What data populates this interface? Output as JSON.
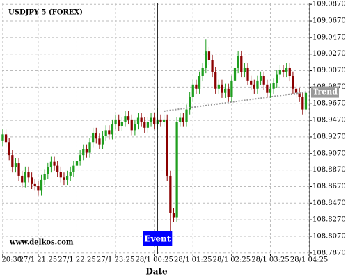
{
  "chart_data": {
    "type": "candlestick",
    "title": "USDJPY 5 (FOREX)",
    "x_label": "Date",
    "watermark": "www.delkos.com",
    "up_color": "#1f9e1f",
    "down_color": "#8b0000",
    "grid": true,
    "xlim": [
      -0.2,
      95.2
    ],
    "ylim": [
      108.786,
      109.088
    ],
    "xticks": [
      {
        "value": 0,
        "label": "27/1 20:30"
      },
      {
        "value": 11,
        "label": "27/1 21:25"
      },
      {
        "value": 23,
        "label": "27/1 22:25"
      },
      {
        "value": 35,
        "label": "27/1 23:25"
      },
      {
        "value": 47,
        "label": "28/1 00:25"
      },
      {
        "value": 59,
        "label": "28/1 01:25"
      },
      {
        "value": 71,
        "label": "28/1 02:25"
      },
      {
        "value": 83,
        "label": "28/1 03:25"
      },
      {
        "value": 95,
        "label": "28/1 04:25"
      }
    ],
    "yticks": [
      {
        "value": 109.087,
        "label": "109.0870"
      },
      {
        "value": 109.067,
        "label": "109.0670"
      },
      {
        "value": 109.047,
        "label": "109.0470"
      },
      {
        "value": 109.027,
        "label": "109.0270"
      },
      {
        "value": 109.007,
        "label": "109.0070"
      },
      {
        "value": 108.987,
        "label": "108.9870"
      },
      {
        "value": 108.967,
        "label": "108.9670"
      },
      {
        "value": 108.947,
        "label": "108.9470"
      },
      {
        "value": 108.927,
        "label": "108.9270"
      },
      {
        "value": 108.907,
        "label": "108.9070"
      },
      {
        "value": 108.887,
        "label": "108.8870"
      },
      {
        "value": 108.867,
        "label": "108.8670"
      },
      {
        "value": 108.847,
        "label": "108.8470"
      },
      {
        "value": 108.827,
        "label": "108.8270"
      },
      {
        "value": 108.807,
        "label": "108.8070"
      },
      {
        "value": 108.787,
        "label": "108.7870"
      }
    ],
    "open": [
      108.922,
      108.93,
      108.92,
      108.905,
      108.89,
      108.895,
      108.88,
      108.872,
      108.885,
      108.878,
      108.87,
      108.868,
      108.862,
      108.875,
      108.882,
      108.89,
      108.897,
      108.892,
      108.885,
      108.878,
      108.875,
      108.88,
      108.885,
      108.892,
      108.898,
      108.905,
      108.912,
      108.908,
      108.92,
      108.932,
      108.925,
      108.918,
      108.928,
      108.935,
      108.93,
      108.942,
      108.948,
      108.94,
      108.945,
      108.952,
      108.948,
      108.935,
      108.942,
      108.95,
      108.945,
      108.938,
      108.945,
      108.95,
      108.942,
      108.948,
      108.945,
      108.948,
      108.88,
      108.835,
      108.83,
      108.945,
      108.95,
      108.945,
      108.96,
      108.975,
      108.99,
      108.985,
      109.0,
      109.01,
      109.03,
      109.02,
      109.005,
      108.985,
      108.99,
      108.98,
      108.985,
      108.975,
      108.995,
      109.01,
      109.025,
      109.005,
      109.01,
      108.995,
      108.99,
      108.985,
      108.995,
      109.0,
      108.99,
      108.98,
      108.985,
      108.992,
      109.002,
      109.008,
      109.005,
      109.01,
      109.0,
      108.985,
      108.98,
      108.975,
      108.96
    ],
    "high": [
      108.936,
      108.936,
      108.926,
      108.911,
      108.901,
      108.901,
      108.886,
      108.891,
      108.891,
      108.884,
      108.876,
      108.874,
      108.881,
      108.888,
      108.896,
      108.903,
      108.903,
      108.898,
      108.891,
      108.884,
      108.886,
      108.891,
      108.898,
      108.904,
      108.911,
      108.918,
      108.918,
      108.926,
      108.938,
      108.938,
      108.931,
      108.934,
      108.941,
      108.941,
      108.948,
      108.954,
      108.954,
      108.951,
      108.958,
      108.958,
      108.954,
      108.948,
      108.956,
      108.956,
      108.951,
      108.951,
      108.956,
      108.956,
      108.962,
      108.954,
      108.954,
      108.954,
      108.886,
      108.841,
      108.951,
      108.956,
      108.956,
      108.966,
      108.981,
      108.996,
      108.996,
      109.006,
      109.016,
      109.045,
      109.036,
      109.026,
      109.011,
      108.996,
      108.996,
      108.991,
      108.991,
      109.001,
      109.016,
      109.031,
      109.031,
      109.016,
      109.016,
      109.001,
      108.996,
      109.001,
      109.006,
      109.006,
      108.996,
      108.991,
      108.998,
      109.008,
      109.014,
      109.014,
      109.016,
      109.016,
      109.006,
      108.991,
      108.986,
      108.981,
      108.986
    ],
    "low": [
      108.916,
      108.914,
      108.899,
      108.884,
      108.884,
      108.874,
      108.866,
      108.866,
      108.872,
      108.864,
      108.862,
      108.856,
      108.856,
      108.869,
      108.876,
      108.884,
      108.886,
      108.879,
      108.872,
      108.869,
      108.869,
      108.874,
      108.879,
      108.886,
      108.892,
      108.899,
      108.902,
      108.902,
      108.914,
      108.919,
      108.912,
      108.912,
      108.922,
      108.924,
      108.924,
      108.936,
      108.934,
      108.934,
      108.939,
      108.942,
      108.929,
      108.929,
      108.936,
      108.939,
      108.932,
      108.932,
      108.939,
      108.936,
      108.936,
      108.939,
      108.939,
      108.874,
      108.812,
      108.824,
      108.824,
      108.939,
      108.939,
      108.939,
      108.954,
      108.969,
      108.979,
      108.979,
      108.994,
      109.004,
      109.014,
      108.999,
      108.979,
      108.979,
      108.974,
      108.974,
      108.969,
      108.969,
      108.989,
      109.004,
      108.999,
      108.999,
      108.989,
      108.984,
      108.979,
      108.979,
      108.989,
      108.984,
      108.974,
      108.974,
      108.979,
      108.986,
      108.996,
      108.999,
      108.999,
      108.994,
      108.979,
      108.974,
      108.969,
      108.954,
      108.954
    ],
    "close": [
      108.93,
      108.92,
      108.905,
      108.89,
      108.895,
      108.88,
      108.872,
      108.885,
      108.878,
      108.87,
      108.868,
      108.862,
      108.875,
      108.882,
      108.89,
      108.897,
      108.892,
      108.885,
      108.878,
      108.875,
      108.88,
      108.885,
      108.892,
      108.898,
      108.905,
      108.912,
      108.908,
      108.92,
      108.932,
      108.925,
      108.918,
      108.928,
      108.935,
      108.93,
      108.942,
      108.948,
      108.94,
      108.945,
      108.952,
      108.948,
      108.935,
      108.942,
      108.95,
      108.945,
      108.938,
      108.945,
      108.95,
      108.942,
      108.948,
      108.945,
      108.948,
      108.88,
      108.835,
      108.83,
      108.945,
      108.95,
      108.945,
      108.96,
      108.975,
      108.99,
      108.985,
      109.0,
      109.01,
      109.03,
      109.02,
      109.005,
      108.985,
      108.99,
      108.98,
      108.985,
      108.975,
      108.995,
      109.01,
      109.025,
      109.005,
      109.01,
      108.995,
      108.99,
      108.985,
      108.995,
      109.0,
      108.99,
      108.98,
      108.985,
      108.992,
      109.002,
      109.008,
      109.005,
      109.01,
      109.0,
      108.985,
      108.98,
      108.975,
      108.96,
      108.98
    ],
    "event": {
      "label": "Event",
      "x": 48,
      "color": "#0000ff"
    },
    "trend": {
      "label": "Trend",
      "x": [
        50,
        94
      ],
      "y": [
        108.958,
        108.981
      ],
      "color": "#999999"
    }
  }
}
